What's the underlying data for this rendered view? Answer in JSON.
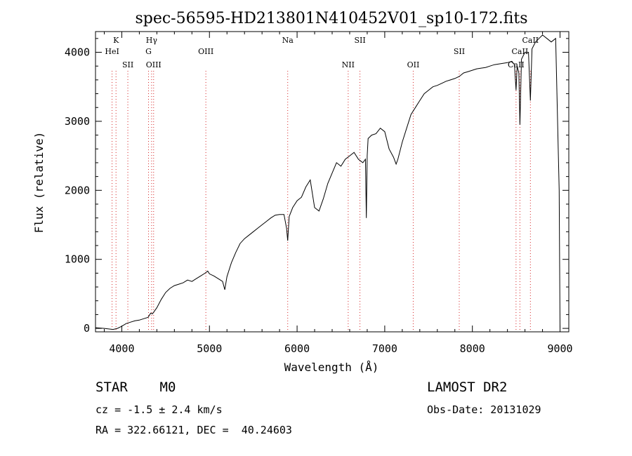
{
  "chart_data": {
    "type": "line",
    "title": "spec-56595-HD213801N410452V01_sp10-172.fits",
    "xlabel": "Wavelength (Å)",
    "ylabel": "Flux (relative)",
    "xlim": [
      3700,
      9100
    ],
    "ylim": [
      -50,
      4300
    ],
    "x_ticks": [
      4000,
      5000,
      6000,
      7000,
      8000,
      9000
    ],
    "y_ticks": [
      0,
      1000,
      2000,
      3000,
      4000
    ],
    "grid": false,
    "series": [
      {
        "x": [
          3700,
          3800,
          3900,
          3950,
          4000,
          4050,
          4100,
          4150,
          4200,
          4250,
          4300,
          4330,
          4350,
          4400,
          4450,
          4500,
          4550,
          4600,
          4650,
          4700,
          4750,
          4800,
          4850,
          4900,
          4950,
          4980,
          5000,
          5050,
          5100,
          5150,
          5175,
          5200,
          5250,
          5300,
          5350,
          5400,
          5450,
          5500,
          5550,
          5600,
          5650,
          5700,
          5750,
          5800,
          5850,
          5880,
          5893,
          5910,
          5950,
          6000,
          6050,
          6100,
          6150,
          6200,
          6250,
          6300,
          6350,
          6400,
          6450,
          6500,
          6550,
          6600,
          6650,
          6700,
          6750,
          6780,
          6790,
          6800,
          6810,
          6850,
          6900,
          6950,
          7000,
          7050,
          7100,
          7130,
          7150,
          7200,
          7250,
          7300,
          7350,
          7400,
          7450,
          7500,
          7550,
          7600,
          7650,
          7700,
          7750,
          7800,
          7850,
          7900,
          7950,
          8000,
          8050,
          8100,
          8150,
          8200,
          8250,
          8300,
          8350,
          8400,
          8450,
          8480,
          8498,
          8510,
          8530,
          8542,
          8560,
          8600,
          8640,
          8662,
          8680,
          8720,
          8760,
          8800,
          8850,
          8900,
          8950,
          8990,
          9000
        ],
        "y": [
          10,
          0,
          -15,
          0,
          30,
          70,
          90,
          110,
          120,
          140,
          160,
          220,
          210,
          300,
          420,
          520,
          580,
          620,
          640,
          660,
          700,
          680,
          720,
          760,
          800,
          830,
          790,
          760,
          720,
          680,
          560,
          750,
          950,
          1100,
          1230,
          1300,
          1350,
          1400,
          1450,
          1500,
          1550,
          1600,
          1640,
          1650,
          1650,
          1450,
          1270,
          1620,
          1750,
          1850,
          1900,
          2050,
          2150,
          1750,
          1700,
          1880,
          2100,
          2250,
          2400,
          2350,
          2450,
          2500,
          2550,
          2450,
          2400,
          2450,
          1600,
          2500,
          2750,
          2800,
          2820,
          2900,
          2850,
          2600,
          2480,
          2380,
          2450,
          2700,
          2900,
          3100,
          3200,
          3300,
          3400,
          3450,
          3500,
          3520,
          3550,
          3580,
          3600,
          3620,
          3650,
          3700,
          3720,
          3740,
          3760,
          3770,
          3780,
          3800,
          3820,
          3830,
          3840,
          3850,
          3870,
          3820,
          3450,
          3800,
          3700,
          2950,
          3900,
          4000,
          4000,
          3300,
          4050,
          4150,
          4200,
          4250,
          4200,
          4150,
          4200,
          2000,
          0
        ]
      }
    ],
    "spectral_lines": [
      {
        "name": "K",
        "x": 3934,
        "row": 0
      },
      {
        "name": "HeI",
        "x": 3889,
        "row": 1
      },
      {
        "name": "SII",
        "x": 4069,
        "row": 2
      },
      {
        "name": "Hγ",
        "x": 4340,
        "row": 0
      },
      {
        "name": "G",
        "x": 4305,
        "row": 1
      },
      {
        "name": "OIII",
        "x": 4363,
        "row": 2
      },
      {
        "name": "OIII",
        "x": 4959,
        "row": 1
      },
      {
        "name": "Na",
        "x": 5893,
        "row": 0
      },
      {
        "name": "NII",
        "x": 6583,
        "row": 2
      },
      {
        "name": "SII",
        "x": 6717,
        "row": 0
      },
      {
        "name": "OII",
        "x": 7325,
        "row": 2
      },
      {
        "name": "SII",
        "x": 7850,
        "row": 1
      },
      {
        "name": "CaII",
        "x": 8498,
        "row": 2
      },
      {
        "name": "CaII",
        "x": 8542,
        "row": 1
      },
      {
        "name": "CaII",
        "x": 8662,
        "row": 0
      }
    ]
  },
  "info": {
    "object": "STAR    M0",
    "survey": "LAMOST DR2",
    "cz": "cz = -1.5 ± 2.4 km/s",
    "obs_date": "Obs-Date: 20131029",
    "coords": "RA = 322.66121, DEC =  40.24603"
  }
}
